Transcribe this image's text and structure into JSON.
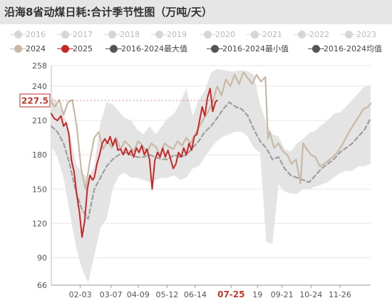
{
  "chart_data": {
    "type": "line",
    "title": "沿海8省动煤日耗:合计季节性图（万吨/天）",
    "y_ticks": [
      "258",
      "240",
      "210",
      "180",
      "150",
      "120",
      "90",
      "66"
    ],
    "ylim": [
      66,
      258
    ],
    "x_ticks": [
      "02-03",
      "03-07",
      "04-09",
      "05-12",
      "06-14",
      "07-25",
      "19",
      "09-21",
      "10-24",
      "11-26"
    ],
    "x_highlight": "07-25",
    "last_value_label": "227.5",
    "grid": true,
    "legend_placement": "top",
    "legend": [
      {
        "name": "2016",
        "color": "#d0d0d0",
        "active": false
      },
      {
        "name": "2017",
        "color": "#d0d0d0",
        "active": false
      },
      {
        "name": "2018",
        "color": "#d0d0d0",
        "active": false
      },
      {
        "name": "2019",
        "color": "#d0d0d0",
        "active": false
      },
      {
        "name": "2020",
        "color": "#d0d0d0",
        "active": false
      },
      {
        "name": "2021",
        "color": "#d0d0d0",
        "active": false
      },
      {
        "name": "2022",
        "color": "#d0d0d0",
        "active": false
      },
      {
        "name": "2023",
        "color": "#d0d0d0",
        "active": false
      },
      {
        "name": "2024",
        "color": "#c8b9a6",
        "active": true
      },
      {
        "name": "2025",
        "color": "#c62828",
        "active": true
      },
      {
        "name": "2016-2024最大值",
        "color": "#555555",
        "active": true
      },
      {
        "name": "2016-2024最小值",
        "color": "#555555",
        "active": true
      },
      {
        "name": "2016-2024均值",
        "color": "#555555",
        "active": true
      }
    ],
    "x_days": [
      1,
      365
    ],
    "series": [
      {
        "name": "2016-2024最大值",
        "role": "range_max",
        "color": "#e6e6e6",
        "points": [
          [
            1,
            232
          ],
          [
            8,
            225
          ],
          [
            15,
            216
          ],
          [
            22,
            200
          ],
          [
            29,
            172
          ],
          [
            36,
            164
          ],
          [
            43,
            160
          ],
          [
            50,
            170
          ],
          [
            57,
            208
          ],
          [
            64,
            226
          ],
          [
            71,
            224
          ],
          [
            78,
            218
          ],
          [
            85,
            212
          ],
          [
            92,
            210
          ],
          [
            99,
            202
          ],
          [
            106,
            198
          ],
          [
            113,
            205
          ],
          [
            120,
            198
          ],
          [
            127,
            205
          ],
          [
            134,
            212
          ],
          [
            141,
            216
          ],
          [
            148,
            226
          ],
          [
            155,
            238
          ],
          [
            162,
            214
          ],
          [
            169,
            228
          ],
          [
            176,
            236
          ],
          [
            183,
            252
          ],
          [
            190,
            255
          ],
          [
            197,
            254
          ],
          [
            204,
            253
          ],
          [
            211,
            253
          ],
          [
            218,
            254
          ],
          [
            225,
            253
          ],
          [
            232,
            250
          ],
          [
            239,
            224
          ],
          [
            246,
            208
          ],
          [
            253,
            198
          ],
          [
            260,
            196
          ],
          [
            267,
            185
          ],
          [
            274,
            183
          ],
          [
            281,
            190
          ],
          [
            288,
            194
          ],
          [
            295,
            199
          ],
          [
            302,
            201
          ],
          [
            309,
            206
          ],
          [
            316,
            210
          ],
          [
            323,
            216
          ],
          [
            330,
            217
          ],
          [
            337,
            222
          ],
          [
            344,
            228
          ],
          [
            351,
            234
          ],
          [
            358,
            240
          ],
          [
            365,
            241
          ]
        ]
      },
      {
        "name": "2016-2024最小值",
        "role": "range_min",
        "color": "#e6e6e6",
        "points": [
          [
            1,
            188
          ],
          [
            8,
            178
          ],
          [
            15,
            160
          ],
          [
            22,
            130
          ],
          [
            29,
            100
          ],
          [
            36,
            80
          ],
          [
            43,
            68
          ],
          [
            50,
            92
          ],
          [
            57,
            116
          ],
          [
            64,
            124
          ],
          [
            71,
            150
          ],
          [
            78,
            162
          ],
          [
            85,
            164
          ],
          [
            92,
            160
          ],
          [
            99,
            160
          ],
          [
            106,
            158
          ],
          [
            113,
            156
          ],
          [
            120,
            158
          ],
          [
            127,
            160
          ],
          [
            134,
            160
          ],
          [
            141,
            162
          ],
          [
            148,
            158
          ],
          [
            155,
            160
          ],
          [
            162,
            168
          ],
          [
            169,
            170
          ],
          [
            176,
            178
          ],
          [
            183,
            186
          ],
          [
            190,
            192
          ],
          [
            197,
            196
          ],
          [
            204,
            198
          ],
          [
            211,
            200
          ],
          [
            218,
            200
          ],
          [
            225,
            196
          ],
          [
            232,
            186
          ],
          [
            239,
            182
          ],
          [
            246,
            104
          ],
          [
            253,
            102
          ],
          [
            260,
            154
          ],
          [
            267,
            148
          ],
          [
            274,
            146
          ],
          [
            281,
            146
          ],
          [
            288,
            150
          ],
          [
            295,
            150
          ],
          [
            302,
            152
          ],
          [
            309,
            154
          ],
          [
            316,
            156
          ],
          [
            323,
            160
          ],
          [
            330,
            164
          ],
          [
            337,
            166
          ],
          [
            344,
            166
          ],
          [
            351,
            170
          ],
          [
            358,
            170
          ],
          [
            365,
            172
          ]
        ]
      },
      {
        "name": "2016-2024均值",
        "color": "#9e9e9e",
        "dash": true,
        "points": [
          [
            1,
            205
          ],
          [
            8,
            200
          ],
          [
            15,
            190
          ],
          [
            22,
            172
          ],
          [
            29,
            148
          ],
          [
            36,
            132
          ],
          [
            43,
            124
          ],
          [
            50,
            150
          ],
          [
            57,
            160
          ],
          [
            64,
            170
          ],
          [
            71,
            176
          ],
          [
            78,
            180
          ],
          [
            85,
            182
          ],
          [
            92,
            180
          ],
          [
            99,
            178
          ],
          [
            106,
            178
          ],
          [
            113,
            180
          ],
          [
            120,
            178
          ],
          [
            127,
            176
          ],
          [
            134,
            176
          ],
          [
            141,
            180
          ],
          [
            148,
            178
          ],
          [
            155,
            180
          ],
          [
            162,
            186
          ],
          [
            169,
            192
          ],
          [
            176,
            200
          ],
          [
            183,
            205
          ],
          [
            190,
            212
          ],
          [
            197,
            220
          ],
          [
            204,
            226
          ],
          [
            211,
            222
          ],
          [
            218,
            220
          ],
          [
            225,
            214
          ],
          [
            232,
            202
          ],
          [
            239,
            192
          ],
          [
            246,
            186
          ],
          [
            253,
            176
          ],
          [
            260,
            178
          ],
          [
            267,
            168
          ],
          [
            274,
            162
          ],
          [
            281,
            160
          ],
          [
            288,
            158
          ],
          [
            295,
            156
          ],
          [
            302,
            162
          ],
          [
            309,
            168
          ],
          [
            316,
            172
          ],
          [
            323,
            176
          ],
          [
            330,
            182
          ],
          [
            337,
            186
          ],
          [
            344,
            190
          ],
          [
            351,
            196
          ],
          [
            358,
            202
          ],
          [
            365,
            212
          ]
        ]
      },
      {
        "name": "2024",
        "color": "#c8b9a6",
        "points": [
          [
            1,
            226
          ],
          [
            5,
            222
          ],
          [
            10,
            228
          ],
          [
            15,
            215
          ],
          [
            20,
            226
          ],
          [
            25,
            228
          ],
          [
            30,
            205
          ],
          [
            35,
            168
          ],
          [
            40,
            150
          ],
          [
            45,
            175
          ],
          [
            50,
            195
          ],
          [
            55,
            200
          ],
          [
            60,
            185
          ],
          [
            65,
            192
          ],
          [
            70,
            186
          ],
          [
            75,
            195
          ],
          [
            80,
            185
          ],
          [
            85,
            192
          ],
          [
            90,
            188
          ],
          [
            95,
            183
          ],
          [
            100,
            192
          ],
          [
            105,
            188
          ],
          [
            110,
            182
          ],
          [
            115,
            190
          ],
          [
            120,
            187
          ],
          [
            125,
            180
          ],
          [
            130,
            190
          ],
          [
            135,
            187
          ],
          [
            140,
            185
          ],
          [
            145,
            192
          ],
          [
            150,
            188
          ],
          [
            155,
            195
          ],
          [
            160,
            190
          ],
          [
            165,
            198
          ],
          [
            170,
            205
          ],
          [
            175,
            212
          ],
          [
            180,
            218
          ],
          [
            185,
            226
          ],
          [
            190,
            240
          ],
          [
            195,
            232
          ],
          [
            200,
            246
          ],
          [
            205,
            240
          ],
          [
            210,
            250
          ],
          [
            215,
            242
          ],
          [
            220,
            252
          ],
          [
            225,
            247
          ],
          [
            230,
            242
          ],
          [
            235,
            250
          ],
          [
            240,
            244
          ],
          [
            245,
            248
          ],
          [
            248,
            194
          ],
          [
            250,
            200
          ],
          [
            255,
            186
          ],
          [
            260,
            190
          ],
          [
            265,
            183
          ],
          [
            270,
            180
          ],
          [
            275,
            172
          ],
          [
            280,
            176
          ],
          [
            285,
            155
          ],
          [
            288,
            190
          ],
          [
            292,
            185
          ],
          [
            297,
            180
          ],
          [
            302,
            178
          ],
          [
            307,
            170
          ],
          [
            312,
            172
          ],
          [
            317,
            175
          ],
          [
            322,
            178
          ],
          [
            327,
            182
          ],
          [
            332,
            188
          ],
          [
            337,
            195
          ],
          [
            342,
            202
          ],
          [
            347,
            208
          ],
          [
            352,
            214
          ],
          [
            357,
            220
          ],
          [
            362,
            222
          ],
          [
            365,
            225
          ]
        ]
      },
      {
        "name": "2025",
        "color": "#c62828",
        "points": [
          [
            1,
            216
          ],
          [
            4,
            212
          ],
          [
            8,
            210
          ],
          [
            12,
            214
          ],
          [
            15,
            205
          ],
          [
            18,
            208
          ],
          [
            21,
            198
          ],
          [
            24,
            175
          ],
          [
            27,
            165
          ],
          [
            30,
            145
          ],
          [
            33,
            130
          ],
          [
            36,
            108
          ],
          [
            39,
            122
          ],
          [
            42,
            150
          ],
          [
            45,
            162
          ],
          [
            48,
            158
          ],
          [
            50,
            160
          ],
          [
            53,
            172
          ],
          [
            56,
            180
          ],
          [
            59,
            190
          ],
          [
            62,
            194
          ],
          [
            65,
            190
          ],
          [
            68,
            196
          ],
          [
            71,
            188
          ],
          [
            74,
            194
          ],
          [
            77,
            184
          ],
          [
            80,
            185
          ],
          [
            83,
            180
          ],
          [
            86,
            186
          ],
          [
            89,
            180
          ],
          [
            92,
            184
          ],
          [
            95,
            178
          ],
          [
            98,
            186
          ],
          [
            101,
            182
          ],
          [
            104,
            188
          ],
          [
            107,
            180
          ],
          [
            110,
            185
          ],
          [
            113,
            176
          ],
          [
            116,
            150
          ],
          [
            119,
            175
          ],
          [
            122,
            182
          ],
          [
            125,
            178
          ],
          [
            128,
            186
          ],
          [
            131,
            178
          ],
          [
            134,
            184
          ],
          [
            137,
            176
          ],
          [
            140,
            168
          ],
          [
            143,
            172
          ],
          [
            146,
            182
          ],
          [
            149,
            178
          ],
          [
            152,
            186
          ],
          [
            155,
            180
          ],
          [
            158,
            190
          ],
          [
            161,
            184
          ],
          [
            164,
            196
          ],
          [
            167,
            198
          ],
          [
            170,
            210
          ],
          [
            173,
            222
          ],
          [
            176,
            214
          ],
          [
            179,
            230
          ],
          [
            182,
            238
          ],
          [
            185,
            218
          ],
          [
            188,
            226
          ],
          [
            190,
            227.5
          ]
        ]
      }
    ]
  }
}
